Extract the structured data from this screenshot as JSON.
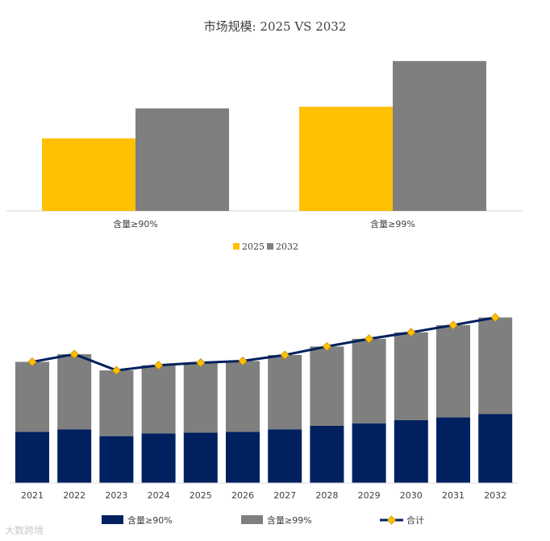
{
  "chart_data": [
    {
      "type": "bar",
      "title": "市场规模: 2025 VS 2032",
      "categories": [
        "含量≥90%",
        "含量≥99%"
      ],
      "series": [
        {
          "name": "2025",
          "color": "#FFC000",
          "values": [
            46,
            66
          ]
        },
        {
          "name": "2032",
          "color": "#7F7F7F",
          "values": [
            65,
            95
          ]
        }
      ],
      "ylim": [
        0,
        100
      ],
      "grid": false,
      "legend": "bottom"
    },
    {
      "type": "bar",
      "stacked": true,
      "categories": [
        "2021",
        "2022",
        "2023",
        "2024",
        "2025",
        "2026",
        "2027",
        "2028",
        "2029",
        "2030",
        "2031",
        "2032"
      ],
      "series": [
        {
          "name": "含量≥90%",
          "color": "#002060",
          "values": [
            30,
            31.5,
            27.5,
            29,
            29.5,
            30,
            31.5,
            33.5,
            35,
            36.8,
            38.5,
            40.5
          ]
        },
        {
          "name": "含量≥99%",
          "color": "#7F7F7F",
          "values": [
            41,
            44,
            38.5,
            40,
            41,
            41.5,
            43.5,
            46.5,
            49.5,
            51.5,
            54,
            56.5
          ]
        },
        {
          "name": "合计",
          "type": "line",
          "color": "#002060",
          "marker_color": "#FFC000",
          "values": [
            71,
            75.5,
            66,
            69,
            70.5,
            71.5,
            75,
            80,
            84.5,
            88.3,
            92.5,
            97
          ]
        }
      ],
      "ylim": [
        0,
        100
      ],
      "grid": false,
      "legend": "bottom"
    }
  ],
  "watermark": "大数跨境"
}
